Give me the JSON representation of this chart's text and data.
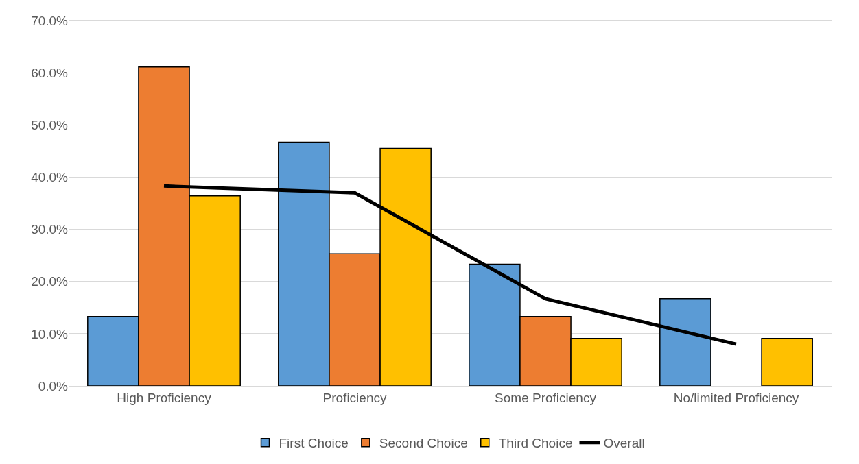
{
  "chart_data": {
    "type": "bar",
    "categories": [
      "High Proficiency",
      "Proficiency",
      "Some Proficiency",
      "No/limited Proficiency"
    ],
    "series": [
      {
        "name": "First Choice",
        "color": "#5b9bd5",
        "values": [
          13.3,
          46.7,
          23.3,
          16.7
        ]
      },
      {
        "name": "Second Choice",
        "color": "#ed7d31",
        "values": [
          61.1,
          25.3,
          13.3,
          null
        ]
      },
      {
        "name": "Third Choice",
        "color": "#ffc000",
        "values": [
          36.4,
          45.5,
          9.1,
          9.1
        ]
      },
      {
        "name": "Overall",
        "type": "line",
        "color": "#000000",
        "values": [
          38.3,
          37.0,
          16.7,
          8.0
        ]
      }
    ],
    "ylim": [
      0,
      70
    ],
    "yticks": [
      {
        "value": 0,
        "label": "0.0%"
      },
      {
        "value": 10,
        "label": "10.0%"
      },
      {
        "value": 20,
        "label": "20.0%"
      },
      {
        "value": 30,
        "label": "30.0%"
      },
      {
        "value": 40,
        "label": "40.0%"
      },
      {
        "value": 50,
        "label": "50.0%"
      },
      {
        "value": 60,
        "label": "60.0%"
      },
      {
        "value": 70,
        "label": "70.0%"
      }
    ],
    "grid": "y",
    "legend": "bottom",
    "marker": "none",
    "line_style": "solid"
  }
}
